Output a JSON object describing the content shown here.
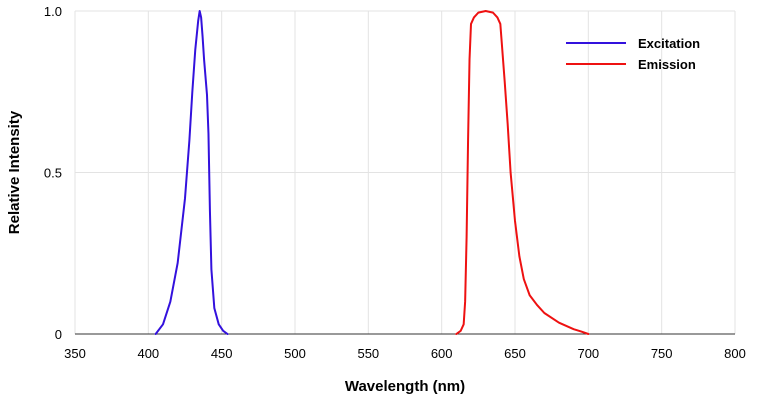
{
  "chart_data": {
    "type": "line",
    "xlabel": "Wavelength (nm)",
    "ylabel": "Relative Intensity",
    "xlim": [
      350,
      800
    ],
    "ylim": [
      0,
      1
    ],
    "x_ticks": [
      350,
      400,
      450,
      500,
      550,
      600,
      650,
      700,
      750,
      800
    ],
    "x_tick_labels": [
      "350",
      "400",
      "450",
      "500",
      "550",
      "600",
      "650",
      "700",
      "750",
      "800"
    ],
    "y_ticks": [
      0,
      0.5,
      1
    ],
    "y_tick_labels": [
      "0",
      "0.5",
      "1.0"
    ],
    "grid": "vertical",
    "legend_position": "top-right",
    "series": [
      {
        "name": "Excitation",
        "color": "#3311dd",
        "points": [
          [
            405,
            0
          ],
          [
            410,
            0.03
          ],
          [
            415,
            0.1
          ],
          [
            420,
            0.22
          ],
          [
            425,
            0.42
          ],
          [
            428,
            0.6
          ],
          [
            430,
            0.75
          ],
          [
            432,
            0.88
          ],
          [
            434,
            0.97
          ],
          [
            435,
            1.0
          ],
          [
            436,
            0.98
          ],
          [
            437,
            0.92
          ],
          [
            438,
            0.85
          ],
          [
            440,
            0.74
          ],
          [
            441,
            0.62
          ],
          [
            442,
            0.38
          ],
          [
            443,
            0.2
          ],
          [
            445,
            0.08
          ],
          [
            448,
            0.03
          ],
          [
            451,
            0.01
          ],
          [
            454,
            0
          ]
        ]
      },
      {
        "name": "Emission",
        "color": "#ee1111",
        "points": [
          [
            610,
            0
          ],
          [
            613,
            0.01
          ],
          [
            615,
            0.03
          ],
          [
            616,
            0.1
          ],
          [
            617,
            0.3
          ],
          [
            618,
            0.6
          ],
          [
            619,
            0.85
          ],
          [
            620,
            0.96
          ],
          [
            622,
            0.98
          ],
          [
            625,
            0.995
          ],
          [
            630,
            1.0
          ],
          [
            635,
            0.995
          ],
          [
            638,
            0.98
          ],
          [
            640,
            0.96
          ],
          [
            641,
            0.9
          ],
          [
            643,
            0.78
          ],
          [
            645,
            0.65
          ],
          [
            647,
            0.5
          ],
          [
            650,
            0.35
          ],
          [
            653,
            0.24
          ],
          [
            656,
            0.17
          ],
          [
            660,
            0.12
          ],
          [
            665,
            0.09
          ],
          [
            670,
            0.065
          ],
          [
            680,
            0.035
          ],
          [
            690,
            0.015
          ],
          [
            695,
            0.008
          ],
          [
            700,
            0
          ]
        ]
      }
    ]
  }
}
